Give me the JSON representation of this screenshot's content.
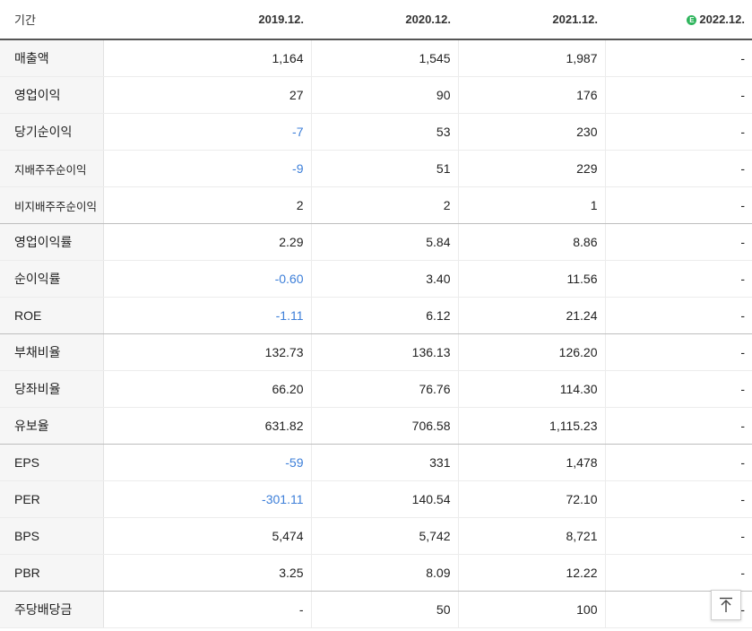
{
  "header": {
    "label": "기간",
    "periods": [
      "2019.12.",
      "2020.12.",
      "2021.12.",
      "2022.12."
    ],
    "estimate_badge": "E"
  },
  "rows": [
    {
      "label": "매출액",
      "values": [
        "1,164",
        "1,545",
        "1,987",
        "-"
      ]
    },
    {
      "label": "영업이익",
      "values": [
        "27",
        "90",
        "176",
        "-"
      ]
    },
    {
      "label": "당기순이익",
      "values": [
        "-7",
        "53",
        "230",
        "-"
      ]
    },
    {
      "label": "지배주주순이익",
      "values": [
        "-9",
        "51",
        "229",
        "-"
      ]
    },
    {
      "label": "비지배주주순이익",
      "values": [
        "2",
        "2",
        "1",
        "-"
      ]
    },
    {
      "label": "영업이익률",
      "values": [
        "2.29",
        "5.84",
        "8.86",
        "-"
      ]
    },
    {
      "label": "순이익률",
      "values": [
        "-0.60",
        "3.40",
        "11.56",
        "-"
      ]
    },
    {
      "label": "ROE",
      "values": [
        "-1.11",
        "6.12",
        "21.24",
        "-"
      ]
    },
    {
      "label": "부채비율",
      "values": [
        "132.73",
        "136.13",
        "126.20",
        "-"
      ]
    },
    {
      "label": "당좌비율",
      "values": [
        "66.20",
        "76.76",
        "114.30",
        "-"
      ]
    },
    {
      "label": "유보율",
      "values": [
        "631.82",
        "706.58",
        "1,115.23",
        "-"
      ]
    },
    {
      "label": "EPS",
      "values": [
        "-59",
        "331",
        "1,478",
        "-"
      ]
    },
    {
      "label": "PER",
      "values": [
        "-301.11",
        "140.54",
        "72.10",
        "-"
      ]
    },
    {
      "label": "BPS",
      "values": [
        "5,474",
        "5,742",
        "8,721",
        "-"
      ]
    },
    {
      "label": "PBR",
      "values": [
        "3.25",
        "8.09",
        "12.22",
        "-"
      ]
    },
    {
      "label": "주당배당금",
      "values": [
        "-",
        "50",
        "100",
        "-"
      ]
    }
  ],
  "colors": {
    "negative": "#3d7fd9",
    "estimate_badge": "#2fb55d"
  },
  "scroll_top_button": {
    "icon": "arrow-up-to-top-icon"
  }
}
